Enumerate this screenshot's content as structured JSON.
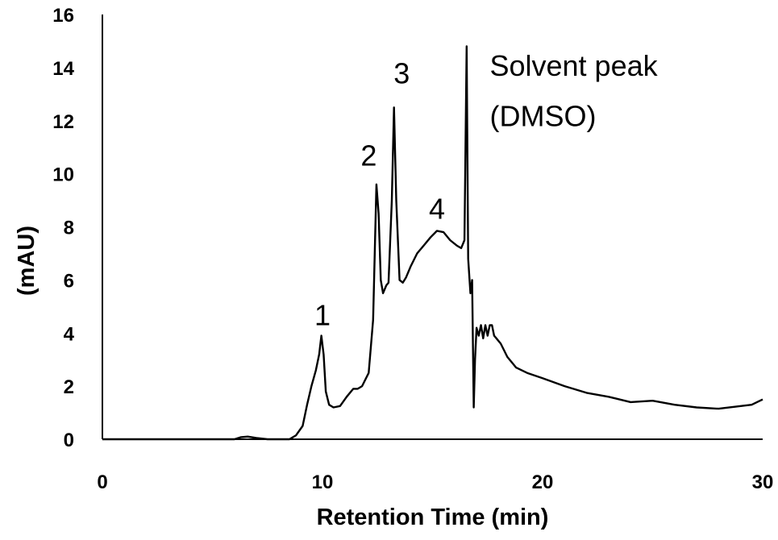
{
  "chart_data": {
    "type": "line",
    "title": "",
    "xlabel": "Retention Time (min)",
    "ylabel": "(mAU)",
    "xlim": [
      0,
      30
    ],
    "ylim": [
      0,
      16
    ],
    "xticks": [
      0,
      10,
      20,
      30
    ],
    "xtick_labels": [
      "0",
      "10",
      "20",
      "30"
    ],
    "yticks": [
      0,
      2,
      4,
      6,
      8,
      10,
      12,
      14,
      16
    ],
    "ytick_labels": [
      "0",
      "2",
      "4",
      "6",
      "8",
      "10",
      "12",
      "14",
      "16"
    ],
    "grid": false,
    "line_color": "#000000",
    "series": [
      {
        "x": [
          0,
          6.0,
          6.3,
          6.6,
          7.0,
          7.5,
          8.0,
          8.5,
          8.8,
          9.1,
          9.3,
          9.5,
          9.7,
          9.85,
          9.95,
          10.05,
          10.15,
          10.3,
          10.5,
          10.8,
          11.1,
          11.4,
          11.6,
          11.8,
          12.1,
          12.3,
          12.45,
          12.55,
          12.65,
          12.75,
          12.9,
          13.0,
          13.15,
          13.25,
          13.35,
          13.5,
          13.65,
          13.8,
          14.0,
          14.3,
          14.6,
          14.9,
          15.2,
          15.5,
          15.8,
          16.1,
          16.3,
          16.45,
          16.55,
          16.62,
          16.72,
          16.8,
          16.87,
          16.93,
          17.0,
          17.1,
          17.2,
          17.3,
          17.4,
          17.5,
          17.6,
          17.7,
          17.8,
          17.9,
          18.1,
          18.4,
          18.8,
          19.3,
          20.0,
          21.0,
          22.0,
          23.0,
          24.0,
          25.0,
          26.0,
          27.0,
          28.0,
          29.0,
          29.5,
          30.0
        ],
        "y": [
          0,
          0,
          0.08,
          0.1,
          0.05,
          0,
          0,
          0,
          0.15,
          0.5,
          1.3,
          2.0,
          2.6,
          3.2,
          3.9,
          3.2,
          1.8,
          1.3,
          1.2,
          1.25,
          1.6,
          1.9,
          1.9,
          2.0,
          2.5,
          4.5,
          9.6,
          8.5,
          6.0,
          5.5,
          5.8,
          5.9,
          9.0,
          12.5,
          9.0,
          6.0,
          5.9,
          6.1,
          6.5,
          7.0,
          7.3,
          7.6,
          7.85,
          7.8,
          7.5,
          7.3,
          7.2,
          7.5,
          14.8,
          6.8,
          5.5,
          6.0,
          1.2,
          3.0,
          4.2,
          3.9,
          4.3,
          3.8,
          4.3,
          3.9,
          4.3,
          4.3,
          3.9,
          3.8,
          3.6,
          3.1,
          2.7,
          2.5,
          2.3,
          2.0,
          1.75,
          1.6,
          1.4,
          1.45,
          1.3,
          1.2,
          1.15,
          1.25,
          1.3,
          1.5
        ]
      }
    ],
    "annotations": [
      {
        "text": "1",
        "x": 10.0,
        "y": 4.3
      },
      {
        "text": "2",
        "x": 12.1,
        "y": 10.3
      },
      {
        "text": "3",
        "x": 13.6,
        "y": 13.4
      },
      {
        "text": "4",
        "x": 15.2,
        "y": 8.3
      },
      {
        "text": "Solvent peak",
        "x": 17.6,
        "y": 13.7,
        "anchor": "start"
      },
      {
        "text": "(DMSO)",
        "x": 17.6,
        "y": 11.8,
        "anchor": "start"
      }
    ]
  }
}
